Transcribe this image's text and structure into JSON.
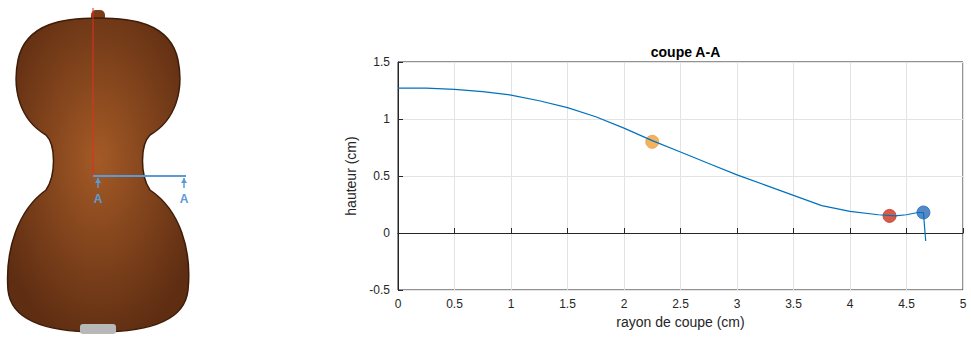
{
  "chart_data": {
    "type": "line",
    "title": "coupe A-A",
    "x_label": "rayon de coupe (cm)",
    "y_label": "hauteur (cm)",
    "x": [
      0,
      0.25,
      0.5,
      0.75,
      1.0,
      1.25,
      1.5,
      1.75,
      2.0,
      2.25,
      2.5,
      2.75,
      3.0,
      3.25,
      3.5,
      3.75,
      4.0,
      4.25,
      4.4,
      4.5,
      4.6,
      4.65,
      4.66,
      4.67
    ],
    "values": [
      1.27,
      1.27,
      1.26,
      1.24,
      1.21,
      1.16,
      1.1,
      1.02,
      0.92,
      0.81,
      0.71,
      0.61,
      0.51,
      0.42,
      0.33,
      0.24,
      0.19,
      0.16,
      0.15,
      0.16,
      0.18,
      0.18,
      0.05,
      -0.07
    ],
    "color": "#0072bd",
    "points": [
      {
        "x": 2.25,
        "y": 0.8,
        "color": "#eda03a"
      },
      {
        "x": 4.35,
        "y": 0.15,
        "color": "#c9331e"
      },
      {
        "x": 4.65,
        "y": 0.18,
        "color": "#2b6cb8"
      }
    ],
    "marker": "circle",
    "xlim": [
      0,
      5
    ],
    "xticks": [
      0,
      0.5,
      1,
      1.5,
      2,
      2.5,
      3,
      3.5,
      4,
      4.5,
      5
    ],
    "ylim": [
      -0.5,
      1.5
    ],
    "yticks": [
      -0.5,
      0,
      0.5,
      1,
      1.5
    ],
    "grid": true,
    "annotations": [
      "A",
      "A"
    ]
  }
}
